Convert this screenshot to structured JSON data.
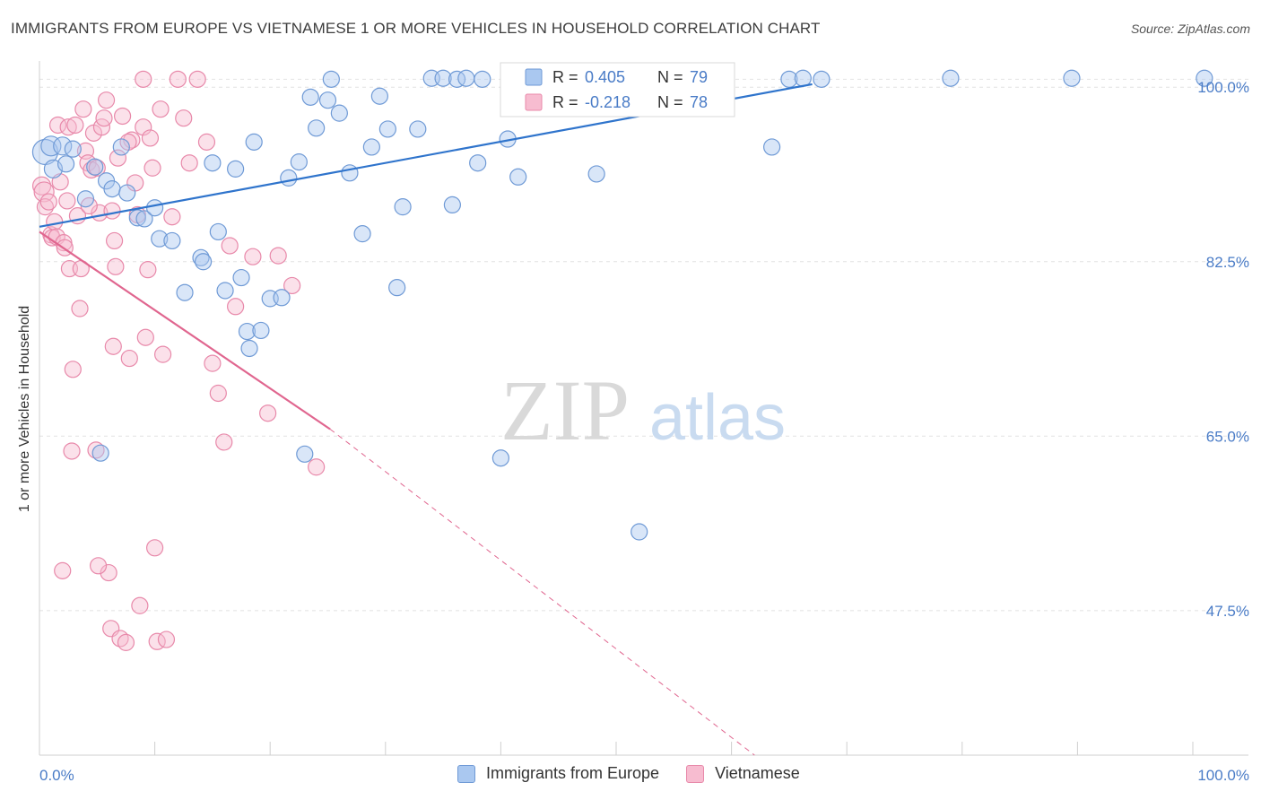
{
  "title": "IMMIGRANTS FROM EUROPE VS VIETNAMESE 1 OR MORE VEHICLES IN HOUSEHOLD CORRELATION CHART",
  "source": "Source: ZipAtlas.com",
  "watermark": {
    "zip": "ZIP",
    "atlas": "atlas"
  },
  "colors": {
    "blue_fill": "#aac8f0",
    "blue_stroke": "#6f9ad6",
    "blue_line": "#2f74cc",
    "pink_fill": "#f7bcd0",
    "pink_stroke": "#e889aa",
    "pink_line": "#e0668f",
    "axis_label": "#4a7cc7",
    "grid": "#e2e2e2"
  },
  "legend": {
    "r_label": "R =",
    "n_label": "N =",
    "series": [
      {
        "r": "0.405",
        "n": "79"
      },
      {
        "r": "-0.218",
        "n": "78"
      }
    ]
  },
  "chart_data": {
    "type": "scatter",
    "xlabel": "",
    "ylabel": "1 or more Vehicles in Household",
    "xlim": [
      0,
      100
    ],
    "ylim": [
      33,
      102
    ],
    "x_tick_labels": [
      "0.0%",
      "100.0%"
    ],
    "y_ticks": [
      47.5,
      65.0,
      82.5,
      100.0
    ],
    "y_tick_labels": [
      "47.5%",
      "65.0%",
      "82.5%",
      "100.0%"
    ],
    "grid": true,
    "legend_position": "bottom",
    "series": [
      {
        "name": "Immigrants from Europe",
        "trend": {
          "x": [
            0,
            67
          ],
          "y": [
            86.0,
            100.3
          ]
        },
        "points": [
          [
            0.5,
            93.5,
            12
          ],
          [
            1.0,
            94.1,
            9
          ],
          [
            1.2,
            91.8,
            8
          ],
          [
            2.0,
            94.1,
            8
          ],
          [
            2.3,
            92.3,
            7
          ],
          [
            2.9,
            93.8,
            7
          ],
          [
            4.0,
            88.8,
            7
          ],
          [
            4.8,
            92.0,
            7
          ],
          [
            5.8,
            90.6,
            7
          ],
          [
            6.3,
            89.8,
            7
          ],
          [
            7.1,
            94.0,
            7
          ],
          [
            7.6,
            89.4,
            7
          ],
          [
            8.5,
            86.9,
            7
          ],
          [
            9.1,
            86.8,
            7
          ],
          [
            10.0,
            87.9,
            7
          ],
          [
            10.4,
            84.8,
            7
          ],
          [
            11.5,
            84.6,
            7
          ],
          [
            12.6,
            79.4,
            7
          ],
          [
            14.0,
            82.9,
            7
          ],
          [
            14.2,
            82.5,
            7
          ],
          [
            15.0,
            92.4,
            7
          ],
          [
            15.5,
            85.5,
            7
          ],
          [
            16.1,
            79.6,
            7
          ],
          [
            17.0,
            91.8,
            7
          ],
          [
            17.5,
            80.9,
            7
          ],
          [
            18.0,
            75.5,
            7
          ],
          [
            18.2,
            73.8,
            7
          ],
          [
            18.6,
            94.5,
            7
          ],
          [
            19.2,
            75.6,
            7
          ],
          [
            20.0,
            78.8,
            7
          ],
          [
            21.0,
            78.9,
            7
          ],
          [
            21.6,
            90.9,
            7
          ],
          [
            22.5,
            92.5,
            7
          ],
          [
            23.0,
            63.2,
            7
          ],
          [
            23.5,
            99.0,
            7
          ],
          [
            24.0,
            95.9,
            7
          ],
          [
            25.0,
            98.7,
            7
          ],
          [
            25.3,
            100.8,
            7
          ],
          [
            26.0,
            97.4,
            7
          ],
          [
            26.9,
            91.4,
            7
          ],
          [
            28.0,
            85.3,
            7
          ],
          [
            28.8,
            94.0,
            7
          ],
          [
            29.5,
            99.1,
            7
          ],
          [
            30.2,
            95.8,
            7
          ],
          [
            31.0,
            79.9,
            7
          ],
          [
            31.5,
            88.0,
            7
          ],
          [
            32.8,
            95.8,
            7
          ],
          [
            34.0,
            100.9,
            7
          ],
          [
            35.0,
            100.9,
            7
          ],
          [
            35.8,
            88.2,
            7
          ],
          [
            36.2,
            100.8,
            7
          ],
          [
            37.0,
            100.9,
            7
          ],
          [
            38.0,
            92.4,
            7
          ],
          [
            38.4,
            100.8,
            7
          ],
          [
            40.0,
            62.8,
            7
          ],
          [
            40.6,
            94.8,
            7
          ],
          [
            41.0,
            100.9,
            7
          ],
          [
            41.5,
            91.0,
            7
          ],
          [
            42.0,
            100.8,
            7
          ],
          [
            43.6,
            100.8,
            7
          ],
          [
            44.3,
            100.9,
            7
          ],
          [
            45.0,
            100.8,
            7
          ],
          [
            45.9,
            100.9,
            7
          ],
          [
            46.5,
            100.8,
            7
          ],
          [
            47.0,
            100.9,
            7
          ],
          [
            48.3,
            91.3,
            7
          ],
          [
            49.0,
            100.8,
            7
          ],
          [
            49.6,
            100.9,
            7
          ],
          [
            52.0,
            55.4,
            7
          ],
          [
            56.0,
            100.9,
            7
          ],
          [
            59.5,
            100.9,
            7
          ],
          [
            63.5,
            94.0,
            7
          ],
          [
            65.0,
            100.8,
            7
          ],
          [
            66.2,
            100.9,
            7
          ],
          [
            67.8,
            100.8,
            7
          ],
          [
            79.0,
            100.9,
            7
          ],
          [
            89.5,
            100.9,
            7
          ],
          [
            101.0,
            100.9,
            7
          ],
          [
            5.3,
            63.3,
            7
          ]
        ]
      },
      {
        "name": "Vietnamese",
        "trend": {
          "x": [
            0,
            25.2
          ],
          "y": [
            85.5,
            65.7
          ]
        },
        "trend_dashed": {
          "x": [
            25.2,
            62
          ],
          "y": [
            65.7,
            33
          ]
        },
        "points": [
          [
            0.2,
            90.1,
            8
          ],
          [
            0.4,
            89.5,
            9
          ],
          [
            0.5,
            88.0,
            7
          ],
          [
            0.8,
            88.5,
            7
          ],
          [
            1.0,
            85.2,
            7
          ],
          [
            1.1,
            84.9,
            7
          ],
          [
            1.3,
            86.5,
            7
          ],
          [
            1.5,
            85.0,
            7
          ],
          [
            1.6,
            96.2,
            7
          ],
          [
            1.8,
            90.5,
            7
          ],
          [
            2.0,
            51.5,
            7
          ],
          [
            2.1,
            84.4,
            7
          ],
          [
            2.2,
            83.9,
            7
          ],
          [
            2.4,
            88.6,
            7
          ],
          [
            2.5,
            96.0,
            7
          ],
          [
            2.6,
            81.8,
            7
          ],
          [
            2.8,
            63.5,
            7
          ],
          [
            2.9,
            71.7,
            7
          ],
          [
            3.1,
            96.2,
            7
          ],
          [
            3.3,
            87.1,
            7
          ],
          [
            3.5,
            77.8,
            7
          ],
          [
            3.6,
            81.8,
            7
          ],
          [
            3.8,
            97.8,
            7
          ],
          [
            4.0,
            93.6,
            7
          ],
          [
            4.2,
            92.4,
            7
          ],
          [
            4.5,
            91.7,
            7
          ],
          [
            4.7,
            95.4,
            7
          ],
          [
            4.9,
            63.6,
            7
          ],
          [
            5.0,
            91.9,
            7
          ],
          [
            5.2,
            87.4,
            7
          ],
          [
            5.4,
            96.0,
            7
          ],
          [
            5.6,
            96.9,
            7
          ],
          [
            5.8,
            98.7,
            7
          ],
          [
            6.0,
            51.3,
            7
          ],
          [
            6.2,
            45.7,
            7
          ],
          [
            6.4,
            74.0,
            7
          ],
          [
            6.5,
            84.6,
            7
          ],
          [
            6.6,
            82.0,
            7
          ],
          [
            6.8,
            92.9,
            7
          ],
          [
            7.0,
            44.7,
            7
          ],
          [
            7.2,
            97.1,
            7
          ],
          [
            7.5,
            44.3,
            7
          ],
          [
            7.8,
            72.8,
            7
          ],
          [
            8.0,
            94.7,
            7
          ],
          [
            8.3,
            90.4,
            7
          ],
          [
            8.5,
            87.2,
            7
          ],
          [
            8.7,
            48.0,
            7
          ],
          [
            9.0,
            96.0,
            7
          ],
          [
            9.2,
            74.9,
            7
          ],
          [
            9.4,
            81.7,
            7
          ],
          [
            9.6,
            94.9,
            7
          ],
          [
            9.8,
            91.9,
            7
          ],
          [
            10.0,
            53.8,
            7
          ],
          [
            10.2,
            44.4,
            7
          ],
          [
            10.5,
            97.8,
            7
          ],
          [
            10.7,
            73.2,
            7
          ],
          [
            11.0,
            44.6,
            7
          ],
          [
            11.5,
            87.0,
            7
          ],
          [
            12.0,
            100.8,
            7
          ],
          [
            12.5,
            96.9,
            7
          ],
          [
            13.0,
            92.4,
            7
          ],
          [
            13.7,
            100.8,
            7
          ],
          [
            14.5,
            94.5,
            7
          ],
          [
            15.0,
            72.3,
            7
          ],
          [
            15.5,
            69.3,
            7
          ],
          [
            16.0,
            64.4,
            7
          ],
          [
            16.5,
            84.1,
            7
          ],
          [
            17.0,
            78.0,
            7
          ],
          [
            18.5,
            83.0,
            7
          ],
          [
            19.8,
            67.3,
            7
          ],
          [
            20.7,
            83.1,
            7
          ],
          [
            21.9,
            80.1,
            7
          ],
          [
            24.0,
            61.9,
            7
          ],
          [
            9.0,
            100.8,
            7
          ],
          [
            4.3,
            88.1,
            7
          ],
          [
            5.1,
            52.0,
            7
          ],
          [
            7.7,
            94.5,
            7
          ],
          [
            6.3,
            87.6,
            7
          ]
        ]
      }
    ]
  }
}
